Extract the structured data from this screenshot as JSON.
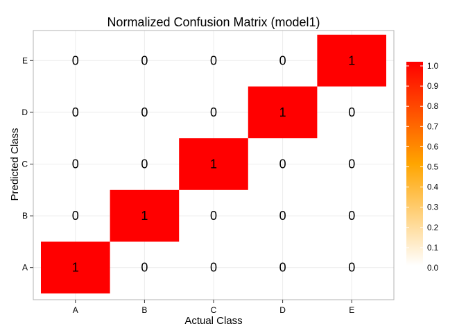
{
  "chart_data": {
    "type": "heatmap",
    "title": "Normalized Confusion Matrix (model1)",
    "xlabel": "Actual Class",
    "ylabel": "Predicted Class",
    "x_categories": [
      "A",
      "B",
      "C",
      "D",
      "E"
    ],
    "y_categories": [
      "A",
      "B",
      "C",
      "D",
      "E"
    ],
    "cells": [
      {
        "actual": "A",
        "predicted": "A",
        "value": 1
      },
      {
        "actual": "B",
        "predicted": "A",
        "value": 0
      },
      {
        "actual": "C",
        "predicted": "A",
        "value": 0
      },
      {
        "actual": "D",
        "predicted": "A",
        "value": 0
      },
      {
        "actual": "E",
        "predicted": "A",
        "value": 0
      },
      {
        "actual": "A",
        "predicted": "B",
        "value": 0
      },
      {
        "actual": "B",
        "predicted": "B",
        "value": 1
      },
      {
        "actual": "C",
        "predicted": "B",
        "value": 0
      },
      {
        "actual": "D",
        "predicted": "B",
        "value": 0
      },
      {
        "actual": "E",
        "predicted": "B",
        "value": 0
      },
      {
        "actual": "A",
        "predicted": "C",
        "value": 0
      },
      {
        "actual": "B",
        "predicted": "C",
        "value": 0
      },
      {
        "actual": "C",
        "predicted": "C",
        "value": 1
      },
      {
        "actual": "D",
        "predicted": "C",
        "value": 0
      },
      {
        "actual": "E",
        "predicted": "C",
        "value": 0
      },
      {
        "actual": "A",
        "predicted": "D",
        "value": 0
      },
      {
        "actual": "B",
        "predicted": "D",
        "value": 0
      },
      {
        "actual": "C",
        "predicted": "D",
        "value": 0
      },
      {
        "actual": "D",
        "predicted": "D",
        "value": 1
      },
      {
        "actual": "E",
        "predicted": "D",
        "value": 0
      },
      {
        "actual": "A",
        "predicted": "E",
        "value": 0
      },
      {
        "actual": "B",
        "predicted": "E",
        "value": 0
      },
      {
        "actual": "C",
        "predicted": "E",
        "value": 0
      },
      {
        "actual": "D",
        "predicted": "E",
        "value": 0
      },
      {
        "actual": "E",
        "predicted": "E",
        "value": 1
      }
    ],
    "colorbar": {
      "range": [
        0,
        1
      ],
      "ticks": [
        "0.0",
        "0.1",
        "0.2",
        "0.3",
        "0.4",
        "0.5",
        "0.6",
        "0.7",
        "0.8",
        "0.9",
        "1.0"
      ],
      "color_low": "#ffffff",
      "color_mid": "#ffa500",
      "color_high": "#ff0000"
    },
    "cell_color_zero": "#ffffff",
    "cell_color_one": "#ff0000",
    "grid": true,
    "legend_position": "right"
  }
}
